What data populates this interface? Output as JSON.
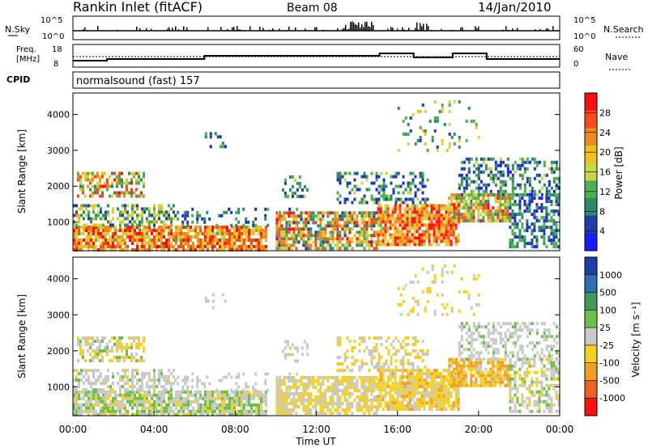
{
  "header": {
    "station": "Rankin Inlet (fitACF)",
    "beam": "Beam 08",
    "date": "14/Jan/2010"
  },
  "nsky_panel": {
    "left_label": "N.Sky",
    "left_ticks": [
      "10^5",
      "10^0"
    ],
    "right_label": "N.Search",
    "right_ticks": [
      "10^5",
      "10^0"
    ]
  },
  "freq_panel": {
    "left_label_1": "Freq.",
    "left_label_2": "[MHz]",
    "left_ticks": [
      "18",
      "8"
    ],
    "right_label": "Nave",
    "right_ticks": [
      "60",
      "0"
    ]
  },
  "cpid_panel": {
    "label": "CPID",
    "text": "normalsound (fast) 157"
  },
  "colors": {
    "power": [
      "#1a1aff",
      "#1f3fa8",
      "#2a8a6a",
      "#4caf50",
      "#c6d84a",
      "#f0c020",
      "#f08a20",
      "#ff4a1a",
      "#ff1010"
    ],
    "velocity": [
      "#1f3fa8",
      "#2a70b0",
      "#3f9a5a",
      "#6cc04a",
      "#c8c8c8",
      "#f4d020",
      "#f0a020",
      "#f06020",
      "#ff1010"
    ]
  },
  "chart_data": [
    {
      "type": "heatmap",
      "panel": "power",
      "ylabel": "Slant Range [km]",
      "yticks": [
        "1000",
        "2000",
        "3000",
        "4000"
      ],
      "ylim": [
        200,
        4600
      ],
      "xlim": [
        0,
        24
      ],
      "colorbar_label": "Power [dB]",
      "colorbar_ticks": [
        "4",
        "8",
        "12",
        "16",
        "20",
        "24",
        "28"
      ],
      "color_range": [
        0,
        32
      ],
      "scatter_regions": [
        {
          "t": [
            0.2,
            3.5
          ],
          "r": [
            1700,
            2400
          ],
          "density": 0.55,
          "v": [
            8,
            30
          ]
        },
        {
          "t": [
            0.0,
            9.5
          ],
          "r": [
            250,
            900
          ],
          "density": 0.85,
          "v": [
            14,
            32
          ]
        },
        {
          "t": [
            0.0,
            5.0
          ],
          "r": [
            900,
            1500
          ],
          "density": 0.5,
          "v": [
            4,
            22
          ]
        },
        {
          "t": [
            5.0,
            11.0
          ],
          "r": [
            900,
            1400
          ],
          "density": 0.25,
          "v": [
            2,
            14
          ]
        },
        {
          "t": [
            10.0,
            15.0
          ],
          "r": [
            250,
            1300
          ],
          "density": 0.75,
          "v": [
            6,
            30
          ]
        },
        {
          "t": [
            13.0,
            17.5
          ],
          "r": [
            1500,
            2400
          ],
          "density": 0.35,
          "v": [
            2,
            16
          ]
        },
        {
          "t": [
            15.0,
            19.0
          ],
          "r": [
            400,
            1500
          ],
          "density": 0.85,
          "v": [
            14,
            32
          ]
        },
        {
          "t": [
            18.5,
            21.5
          ],
          "r": [
            1000,
            1800
          ],
          "density": 0.75,
          "v": [
            10,
            30
          ]
        },
        {
          "t": [
            19.0,
            24.0
          ],
          "r": [
            1800,
            2800
          ],
          "density": 0.45,
          "v": [
            2,
            16
          ]
        },
        {
          "t": [
            21.5,
            24.0
          ],
          "r": [
            300,
            1800
          ],
          "density": 0.55,
          "v": [
            2,
            14
          ]
        },
        {
          "t": [
            16.0,
            20.0
          ],
          "r": [
            3000,
            4400
          ],
          "density": 0.12,
          "v": [
            6,
            20
          ]
        },
        {
          "t": [
            6.5,
            7.5
          ],
          "r": [
            3100,
            3600
          ],
          "density": 0.15,
          "v": [
            2,
            12
          ]
        },
        {
          "t": [
            10.3,
            11.5
          ],
          "r": [
            1700,
            2300
          ],
          "density": 0.3,
          "v": [
            4,
            16
          ]
        }
      ]
    },
    {
      "type": "heatmap",
      "panel": "velocity",
      "ylabel": "Slant Range [km]",
      "yticks": [
        "1000",
        "2000",
        "3000",
        "4000"
      ],
      "ylim": [
        200,
        4600
      ],
      "xlim": [
        0,
        24
      ],
      "xlabel": "Time UT",
      "xticks": [
        "00:00",
        "04:00",
        "08:00",
        "12:00",
        "16:00",
        "20:00",
        "00:00"
      ],
      "colorbar_label": "Velocity [m s⁻¹]",
      "colorbar_ticks": [
        "1000",
        "500",
        "100",
        "25",
        "-25",
        "-100",
        "-500",
        "-1000"
      ],
      "color_range": [
        -1000,
        1000
      ],
      "scatter_regions": [
        {
          "t": [
            0.2,
            3.5
          ],
          "r": [
            1700,
            2400
          ],
          "density": 0.55,
          "v": [
            -300,
            200
          ]
        },
        {
          "t": [
            0.0,
            9.5
          ],
          "r": [
            250,
            900
          ],
          "density": 0.85,
          "v": [
            -200,
            300
          ]
        },
        {
          "t": [
            0.0,
            5.0
          ],
          "r": [
            900,
            1500
          ],
          "density": 0.5,
          "v": [
            -150,
            150
          ]
        },
        {
          "t": [
            5.0,
            11.0
          ],
          "r": [
            900,
            1400
          ],
          "density": 0.25,
          "v": [
            -100,
            100
          ]
        },
        {
          "t": [
            10.0,
            15.0
          ],
          "r": [
            250,
            1300
          ],
          "density": 0.75,
          "v": [
            -300,
            50
          ]
        },
        {
          "t": [
            13.0,
            17.5
          ],
          "r": [
            1500,
            2400
          ],
          "density": 0.35,
          "v": [
            -300,
            50
          ]
        },
        {
          "t": [
            15.0,
            19.0
          ],
          "r": [
            400,
            1500
          ],
          "density": 0.85,
          "v": [
            -400,
            -50
          ]
        },
        {
          "t": [
            18.5,
            21.5
          ],
          "r": [
            1000,
            1800
          ],
          "density": 0.75,
          "v": [
            -500,
            -50
          ]
        },
        {
          "t": [
            19.0,
            24.0
          ],
          "r": [
            1800,
            2800
          ],
          "density": 0.45,
          "v": [
            -50,
            150
          ]
        },
        {
          "t": [
            21.5,
            24.0
          ],
          "r": [
            300,
            1800
          ],
          "density": 0.55,
          "v": [
            -200,
            200
          ]
        },
        {
          "t": [
            16.0,
            20.0
          ],
          "r": [
            3000,
            4400
          ],
          "density": 0.12,
          "v": [
            -300,
            0
          ]
        },
        {
          "t": [
            6.5,
            7.5
          ],
          "r": [
            3100,
            3600
          ],
          "density": 0.15,
          "v": [
            -100,
            100
          ]
        },
        {
          "t": [
            10.3,
            11.5
          ],
          "r": [
            1700,
            2300
          ],
          "density": 0.3,
          "v": [
            -150,
            50
          ]
        }
      ]
    }
  ]
}
